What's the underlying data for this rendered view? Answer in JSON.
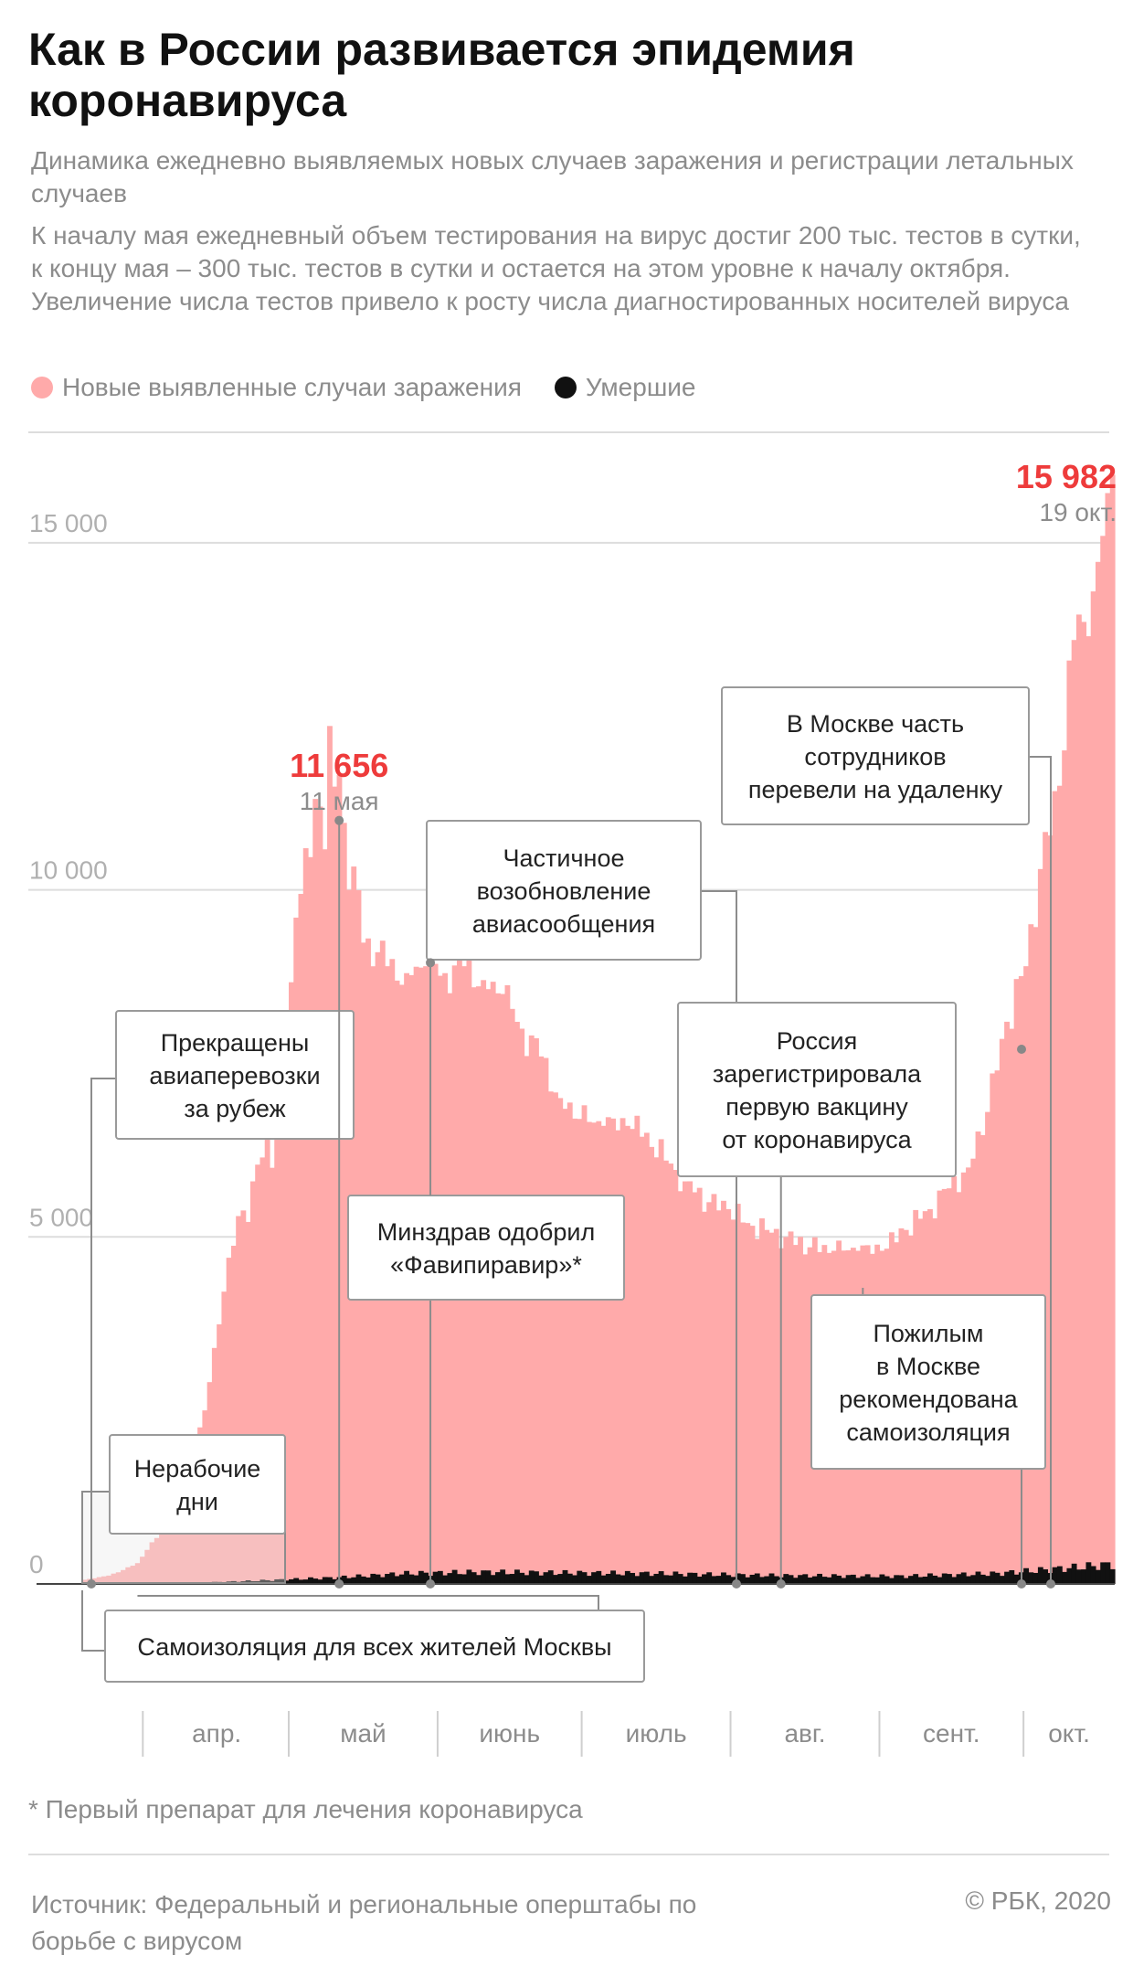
{
  "header": {
    "title": "Как в России развивается эпидемия коронавируса",
    "subtitle": "Динамика ежедневно выявляемых новых случаев заражения и регистрации летальных случаев",
    "note": "К началу мая ежедневный объем тестирования на вирус достиг 200 тыс. тестов в сутки, к концу мая – 300 тыс. тестов в сутки и остается на этом уровне к началу октября. Увеличение числа тестов привело к росту числа диагностированных носителей вируса"
  },
  "legend": {
    "cases_label": "Новые выявленные случаи заражения",
    "deaths_label": "Умершие",
    "cases_color": "#ffaaaa",
    "deaths_color": "#111111"
  },
  "colors": {
    "cases": "#ffaaaa",
    "deaths": "#111111",
    "peak_value": "#ee3b3b",
    "peak_date": "#8c8c8c",
    "grid": "#dddddd",
    "callout_line": "#8c8c8c"
  },
  "chart_data": {
    "type": "bar",
    "series_names": [
      "Новые выявленные случаи заражения",
      "Умершие"
    ],
    "x_start": "2020-03-19",
    "y_ticks": [
      {
        "value": 0,
        "label": "0"
      },
      {
        "value": 5000,
        "label": "5 000"
      },
      {
        "value": 10000,
        "label": "10 000"
      },
      {
        "value": 15000,
        "label": "15 000"
      }
    ],
    "ylim": [
      0,
      16500
    ],
    "x_months": [
      "апр.",
      "май",
      "июнь",
      "июль",
      "авг.",
      "сент.",
      "окт."
    ],
    "cases_anchors": [
      [
        "2020-03-19",
        60
      ],
      [
        "2020-03-24",
        120
      ],
      [
        "2020-03-27",
        200
      ],
      [
        "2020-03-30",
        300
      ],
      [
        "2020-04-02",
        600
      ],
      [
        "2020-04-05",
        800
      ],
      [
        "2020-04-08",
        1200
      ],
      [
        "2020-04-10",
        1700
      ],
      [
        "2020-04-13",
        2500
      ],
      [
        "2020-04-15",
        3400
      ],
      [
        "2020-04-18",
        4700
      ],
      [
        "2020-04-20",
        5300
      ],
      [
        "2020-04-23",
        5800
      ],
      [
        "2020-04-26",
        6400
      ],
      [
        "2020-04-30",
        7100
      ],
      [
        "2020-05-02",
        9600
      ],
      [
        "2020-05-04",
        10600
      ],
      [
        "2020-05-07",
        11200
      ],
      [
        "2020-05-11",
        11656
      ],
      [
        "2020-05-13",
        10000
      ],
      [
        "2020-05-17",
        9300
      ],
      [
        "2020-05-21",
        8900
      ],
      [
        "2020-05-25",
        8800
      ],
      [
        "2020-05-29",
        8900
      ],
      [
        "2020-06-02",
        8800
      ],
      [
        "2020-06-06",
        8900
      ],
      [
        "2020-06-10",
        8700
      ],
      [
        "2020-06-14",
        8500
      ],
      [
        "2020-06-18",
        8000
      ],
      [
        "2020-06-22",
        7600
      ],
      [
        "2020-06-26",
        7000
      ],
      [
        "2020-06-30",
        6700
      ],
      [
        "2020-07-05",
        6600
      ],
      [
        "2020-07-10",
        6600
      ],
      [
        "2020-07-14",
        6500
      ],
      [
        "2020-07-18",
        6100
      ],
      [
        "2020-07-22",
        5800
      ],
      [
        "2020-07-27",
        5500
      ],
      [
        "2020-07-31",
        5400
      ],
      [
        "2020-08-04",
        5200
      ],
      [
        "2020-08-08",
        5100
      ],
      [
        "2020-08-12",
        5000
      ],
      [
        "2020-08-17",
        4850
      ],
      [
        "2020-08-22",
        4800
      ],
      [
        "2020-08-27",
        4800
      ],
      [
        "2020-09-01",
        4800
      ],
      [
        "2020-09-06",
        5100
      ],
      [
        "2020-09-11",
        5400
      ],
      [
        "2020-09-15",
        5700
      ],
      [
        "2020-09-19",
        6000
      ],
      [
        "2020-09-23",
        6800
      ],
      [
        "2020-09-27",
        8100
      ],
      [
        "2020-10-01",
        8900
      ],
      [
        "2020-10-04",
        10300
      ],
      [
        "2020-10-08",
        11500
      ],
      [
        "2020-10-11",
        13600
      ],
      [
        "2020-10-15",
        14300
      ],
      [
        "2020-10-17",
        15100
      ],
      [
        "2020-10-19",
        15982
      ]
    ],
    "deaths_anchors": [
      [
        "2020-03-19",
        0
      ],
      [
        "2020-04-10",
        12
      ],
      [
        "2020-04-25",
        50
      ],
      [
        "2020-05-10",
        90
      ],
      [
        "2020-05-25",
        150
      ],
      [
        "2020-06-10",
        170
      ],
      [
        "2020-06-25",
        160
      ],
      [
        "2020-07-15",
        150
      ],
      [
        "2020-08-10",
        120
      ],
      [
        "2020-09-05",
        110
      ],
      [
        "2020-09-25",
        150
      ],
      [
        "2020-10-10",
        230
      ],
      [
        "2020-10-19",
        280
      ]
    ],
    "peaks": [
      {
        "value_label": "11 656",
        "date_label": "11 мая",
        "date": "2020-05-11",
        "value": 11656
      },
      {
        "value_label": "15 982",
        "date_label": "19 окт.",
        "date": "2020-10-19",
        "value": 15982
      }
    ],
    "annotations": [
      {
        "text": [
          "Нерабочие",
          "дни"
        ],
        "date": "2020-03-30"
      },
      {
        "text": [
          "Прекращены",
          "авиаперевозки",
          "за рубеж"
        ],
        "date": "2020-03-27"
      },
      {
        "text": [
          "Самоизоляция для всех жителей Москвы"
        ],
        "date": "2020-03-30"
      },
      {
        "text": [
          "Минздрав одобрил",
          "«Фавипиравир»*"
        ],
        "date": "2020-05-30"
      },
      {
        "text": [
          "Частичное",
          "возобновление",
          "авиасообщения"
        ],
        "date": "2020-08-01"
      },
      {
        "text": [
          "Россия",
          "зарегистрировала",
          "первую вакцину",
          "от коронавируса"
        ],
        "date": "2020-08-11"
      },
      {
        "text": [
          "Пожилым",
          "в Москве",
          "рекомендована",
          "самоизоляция"
        ],
        "date": "2020-09-28"
      },
      {
        "text": [
          "В Москве часть",
          "сотрудников",
          "перевели на удаленку"
        ],
        "date": "2020-10-05"
      }
    ]
  },
  "footnote": "* Первый препарат для лечения коронавируса",
  "footer": {
    "source": "Источник: Федеральный и региональные оперштабы по борьбе с вирусом",
    "copyright": "© РБК, 2020"
  }
}
